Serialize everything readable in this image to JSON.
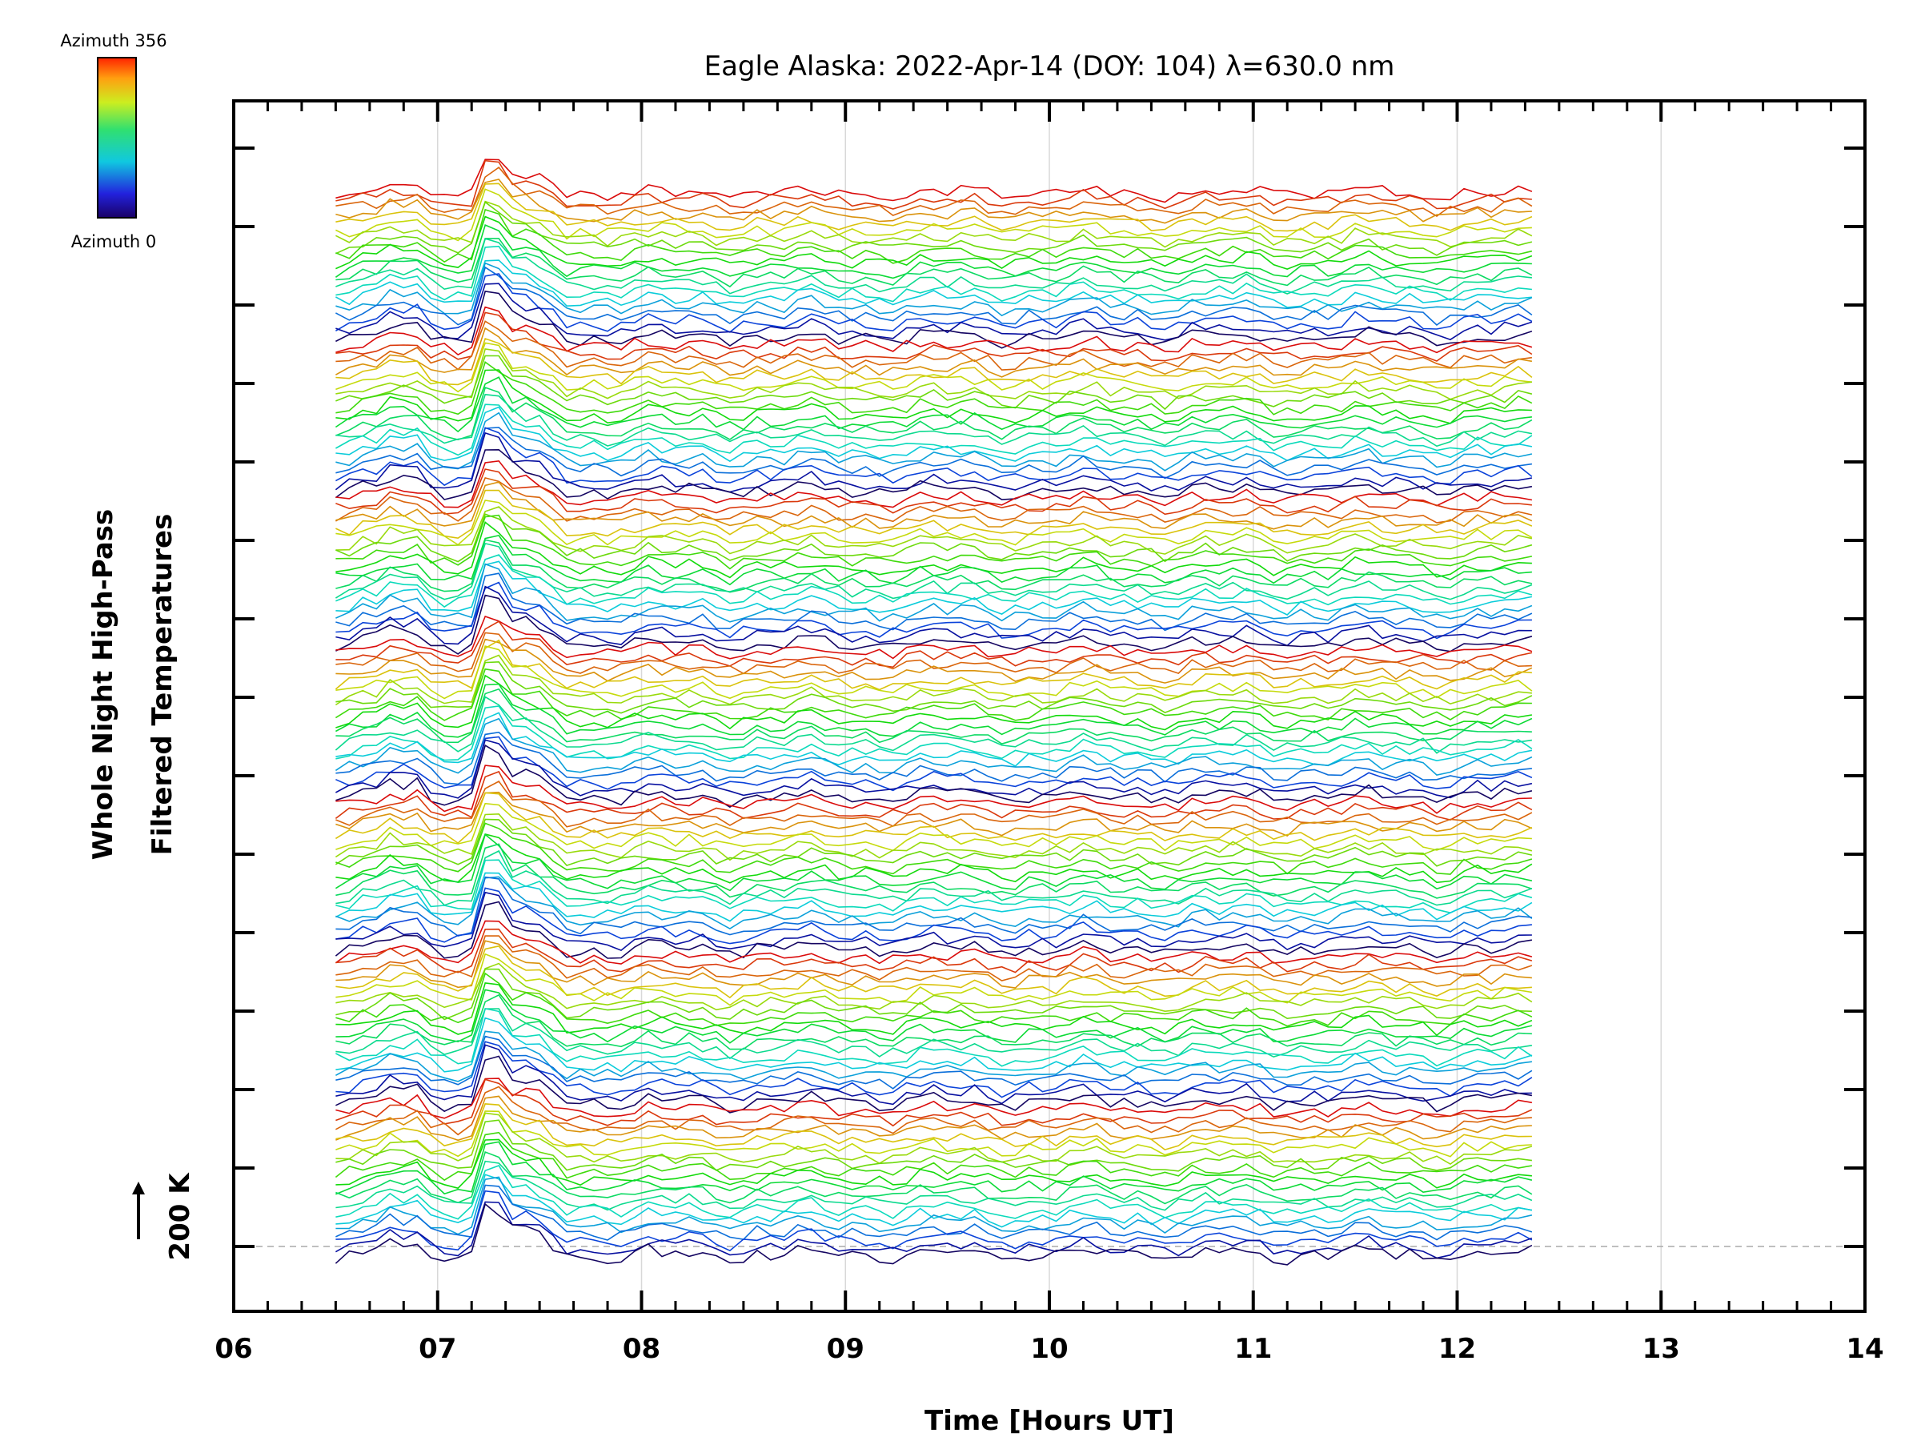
{
  "chart_data": {
    "type": "line",
    "title": "Eagle Alaska: 2022-Apr-14 (DOY: 104) λ=630.0 nm",
    "xlabel": "Time [Hours UT]",
    "ylabel_line1": "Whole Night High-Pass",
    "ylabel_line2": "Filtered Temperatures",
    "xlim": [
      6,
      14
    ],
    "x_ticks": [
      "06",
      "07",
      "08",
      "09",
      "10",
      "11",
      "12",
      "13",
      "14"
    ],
    "x_grid": true,
    "data_time_range": [
      6.5,
      12.4
    ],
    "baseline_label": "200 K",
    "baseline_style": "dashed",
    "colorbar": {
      "colormap": "rainbow",
      "top_label": "Azimuth 356",
      "bottom_label": "Azimuth 0",
      "range": [
        0,
        356
      ]
    },
    "series_description": "Many stacked high-pass filtered temperature traces (one per azimuth direction), each offset vertically; colored by azimuth via the rainbow colorbar."
  }
}
